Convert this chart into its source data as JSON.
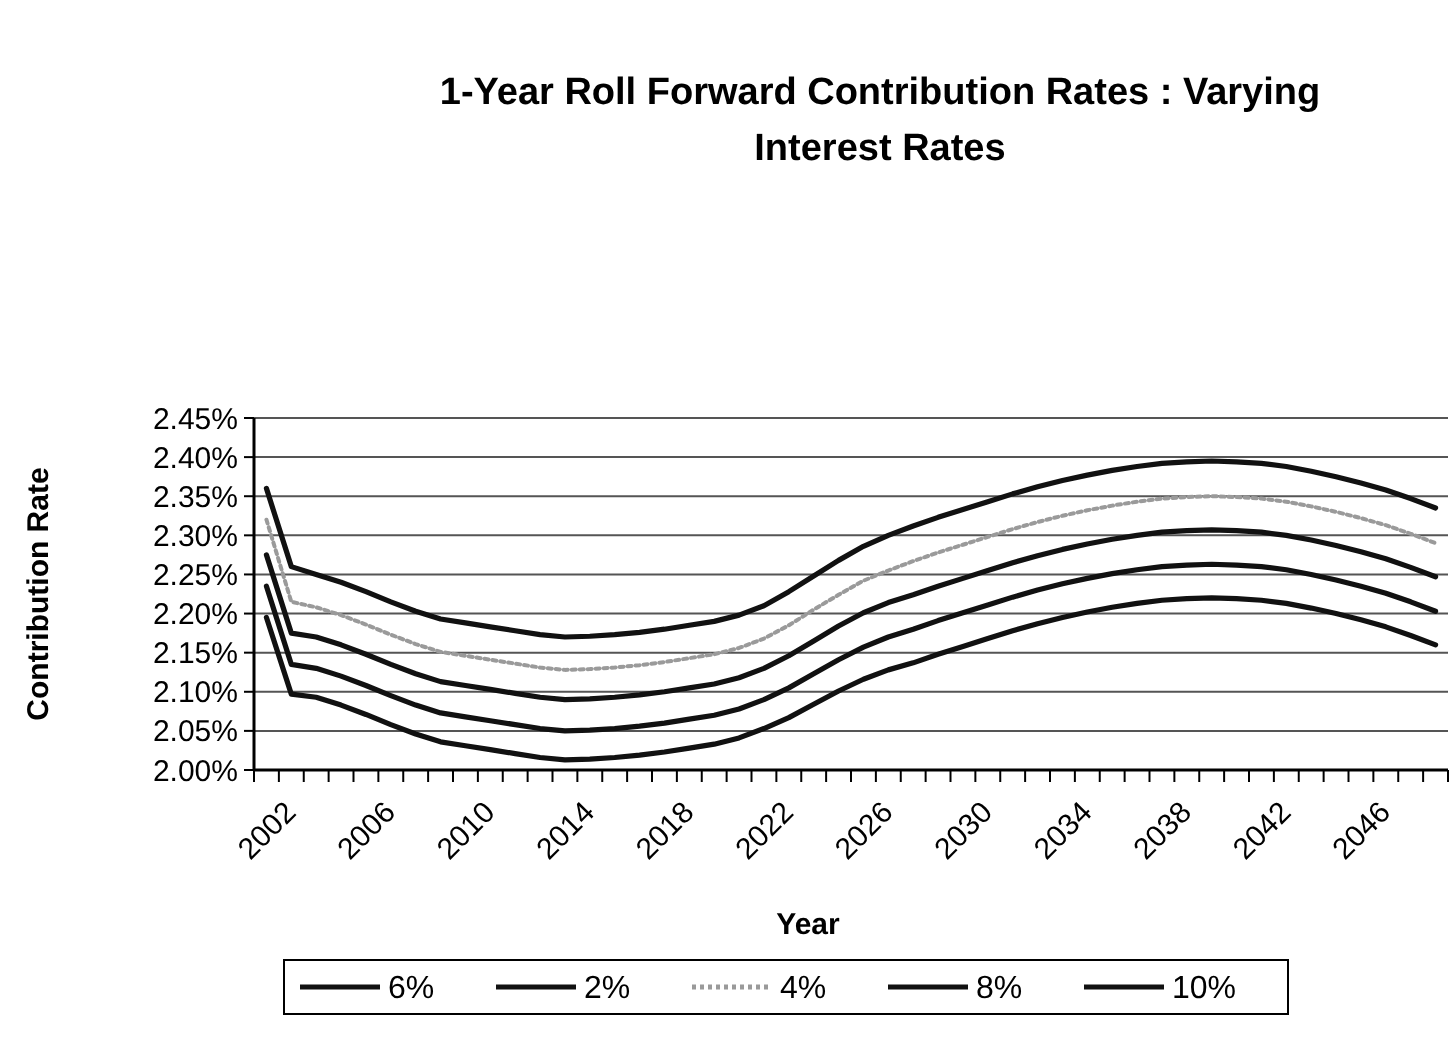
{
  "chart_data": {
    "type": "line",
    "title": "1-Year Roll Forward Contribution Rates : Varying Interest Rates",
    "xlabel": "Year",
    "ylabel": "Contribution Rate",
    "categories": [
      "2002",
      null,
      null,
      null,
      "2006",
      null,
      null,
      null,
      "2010",
      null,
      null,
      null,
      "2014",
      null,
      null,
      null,
      "2018",
      null,
      null,
      null,
      "2022",
      null,
      null,
      null,
      "2026",
      null,
      null,
      null,
      "2030",
      null,
      null,
      null,
      "2034",
      null,
      null,
      null,
      "2038",
      null,
      null,
      null,
      "2042",
      null,
      null,
      null,
      "2046",
      null,
      null,
      null
    ],
    "series": [
      {
        "name": "6%",
        "color": "#111111",
        "values": [
          2.275,
          2.175,
          2.17,
          2.16,
          2.148,
          2.135,
          2.123,
          2.113,
          2.108,
          2.103,
          2.098,
          2.093,
          2.09,
          2.091,
          2.093,
          2.096,
          2.1,
          2.105,
          2.11,
          2.118,
          2.13,
          2.146,
          2.165,
          2.184,
          2.201,
          2.214,
          2.224,
          2.235,
          2.245,
          2.255,
          2.265,
          2.274,
          2.282,
          2.289,
          2.295,
          2.3,
          2.304,
          2.306,
          2.307,
          2.306,
          2.304,
          2.3,
          2.294,
          2.287,
          2.279,
          2.27,
          2.259,
          2.247
        ]
      },
      {
        "name": "2%",
        "color": "#111111",
        "values": [
          2.36,
          2.26,
          2.25,
          2.24,
          2.228,
          2.215,
          2.203,
          2.193,
          2.188,
          2.183,
          2.178,
          2.173,
          2.17,
          2.171,
          2.173,
          2.176,
          2.18,
          2.185,
          2.19,
          2.198,
          2.21,
          2.228,
          2.248,
          2.268,
          2.286,
          2.3,
          2.312,
          2.323,
          2.333,
          2.343,
          2.353,
          2.362,
          2.37,
          2.377,
          2.383,
          2.388,
          2.392,
          2.394,
          2.395,
          2.394,
          2.392,
          2.388,
          2.382,
          2.375,
          2.367,
          2.358,
          2.347,
          2.335
        ]
      },
      {
        "name": "4%",
        "color": "#9a9a9a",
        "line_style": "dotted",
        "values": [
          2.32,
          2.215,
          2.208,
          2.198,
          2.186,
          2.173,
          2.161,
          2.151,
          2.146,
          2.141,
          2.136,
          2.131,
          2.128,
          2.129,
          2.131,
          2.134,
          2.138,
          2.143,
          2.148,
          2.156,
          2.168,
          2.185,
          2.205,
          2.224,
          2.242,
          2.255,
          2.267,
          2.278,
          2.288,
          2.298,
          2.308,
          2.317,
          2.325,
          2.332,
          2.338,
          2.343,
          2.347,
          2.349,
          2.35,
          2.349,
          2.347,
          2.343,
          2.337,
          2.33,
          2.322,
          2.313,
          2.302,
          2.29
        ]
      },
      {
        "name": "8%",
        "color": "#111111",
        "values": [
          2.235,
          2.135,
          2.13,
          2.12,
          2.108,
          2.095,
          2.083,
          2.073,
          2.068,
          2.063,
          2.058,
          2.053,
          2.05,
          2.051,
          2.053,
          2.056,
          2.06,
          2.065,
          2.07,
          2.078,
          2.09,
          2.105,
          2.123,
          2.141,
          2.157,
          2.17,
          2.18,
          2.191,
          2.201,
          2.211,
          2.221,
          2.23,
          2.238,
          2.245,
          2.251,
          2.256,
          2.26,
          2.262,
          2.263,
          2.262,
          2.26,
          2.256,
          2.25,
          2.243,
          2.235,
          2.226,
          2.215,
          2.203
        ]
      },
      {
        "name": "10%",
        "color": "#111111",
        "values": [
          2.195,
          2.097,
          2.093,
          2.083,
          2.071,
          2.058,
          2.046,
          2.036,
          2.031,
          2.026,
          2.021,
          2.016,
          2.013,
          2.014,
          2.016,
          2.019,
          2.023,
          2.028,
          2.033,
          2.041,
          2.053,
          2.067,
          2.084,
          2.101,
          2.116,
          2.128,
          2.137,
          2.148,
          2.158,
          2.168,
          2.178,
          2.187,
          2.195,
          2.202,
          2.208,
          2.213,
          2.217,
          2.219,
          2.22,
          2.219,
          2.217,
          2.213,
          2.207,
          2.2,
          2.192,
          2.183,
          2.172,
          2.16
        ]
      }
    ],
    "ylim": [
      2.0,
      2.45
    ],
    "yticks": [
      {
        "value": 2.0,
        "label": "2.00%"
      },
      {
        "value": 2.05,
        "label": "2.05%"
      },
      {
        "value": 2.1,
        "label": "2.10%"
      },
      {
        "value": 2.15,
        "label": "2.15%"
      },
      {
        "value": 2.2,
        "label": "2.20%"
      },
      {
        "value": 2.25,
        "label": "2.25%"
      },
      {
        "value": 2.3,
        "label": "2.30%"
      },
      {
        "value": 2.35,
        "label": "2.35%"
      },
      {
        "value": 2.4,
        "label": "2.40%"
      },
      {
        "value": 2.45,
        "label": "2.45%"
      }
    ],
    "grid": "y",
    "legend": "bottom",
    "marker": "none",
    "line_style": "solid"
  }
}
